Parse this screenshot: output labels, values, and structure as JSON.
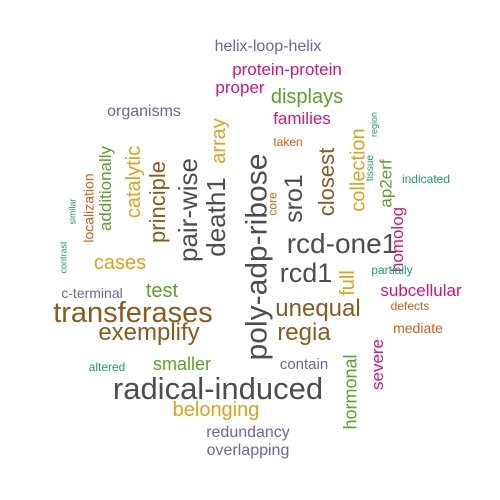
{
  "colors": {
    "gray": "#4d4d4d",
    "brown": "#8a5a1e",
    "orange": "#e0a21c",
    "green": "#5ca02a",
    "magenta": "#d6147a",
    "purple": "#6f63a8",
    "teal": "#1e9b73",
    "rust": "#d35f14"
  },
  "words": [
    {
      "text": "radical-induced",
      "color": "gray"
    },
    {
      "text": "poly-adp-ribose",
      "color": "gray"
    },
    {
      "text": "transferases",
      "color": "brown"
    },
    {
      "text": "rcd-one1",
      "color": "gray"
    },
    {
      "text": "rcd1",
      "color": "gray"
    },
    {
      "text": "death1",
      "color": "gray"
    },
    {
      "text": "pair-wise",
      "color": "gray"
    },
    {
      "text": "sro1",
      "color": "gray"
    },
    {
      "text": "exemplify",
      "color": "brown"
    },
    {
      "text": "unequal",
      "color": "brown"
    },
    {
      "text": "regia",
      "color": "brown"
    },
    {
      "text": "principle",
      "color": "brown"
    },
    {
      "text": "closest",
      "color": "brown"
    },
    {
      "text": "array",
      "color": "orange"
    },
    {
      "text": "catalytic",
      "color": "orange"
    },
    {
      "text": "cases",
      "color": "orange"
    },
    {
      "text": "belonging",
      "color": "orange"
    },
    {
      "text": "collection",
      "color": "orange"
    },
    {
      "text": "full",
      "color": "orange"
    },
    {
      "text": "displays",
      "color": "green"
    },
    {
      "text": "test",
      "color": "green"
    },
    {
      "text": "smaller",
      "color": "green"
    },
    {
      "text": "additionally",
      "color": "green"
    },
    {
      "text": "ap2erf",
      "color": "green"
    },
    {
      "text": "hormonal",
      "color": "green"
    },
    {
      "text": "protein-protein",
      "color": "magenta"
    },
    {
      "text": "proper",
      "color": "magenta"
    },
    {
      "text": "families",
      "color": "magenta"
    },
    {
      "text": "homolog",
      "color": "magenta"
    },
    {
      "text": "subcellular",
      "color": "magenta"
    },
    {
      "text": "severe",
      "color": "magenta"
    },
    {
      "text": "helix-loop-helix",
      "color": "purple"
    },
    {
      "text": "organisms",
      "color": "purple"
    },
    {
      "text": "c-terminal",
      "color": "purple"
    },
    {
      "text": "contain",
      "color": "purple"
    },
    {
      "text": "redundancy",
      "color": "purple"
    },
    {
      "text": "overlapping",
      "color": "purple"
    },
    {
      "text": "localization",
      "color": "rust"
    },
    {
      "text": "taken",
      "color": "rust"
    },
    {
      "text": "core",
      "color": "rust"
    },
    {
      "text": "defects",
      "color": "rust"
    },
    {
      "text": "mediate",
      "color": "rust"
    },
    {
      "text": "indicated",
      "color": "teal"
    },
    {
      "text": "partially",
      "color": "teal"
    },
    {
      "text": "altered",
      "color": "teal"
    },
    {
      "text": "tissue",
      "color": "teal"
    },
    {
      "text": "region",
      "color": "teal"
    },
    {
      "text": "similar",
      "color": "teal"
    },
    {
      "text": "contrast",
      "color": "teal"
    }
  ]
}
